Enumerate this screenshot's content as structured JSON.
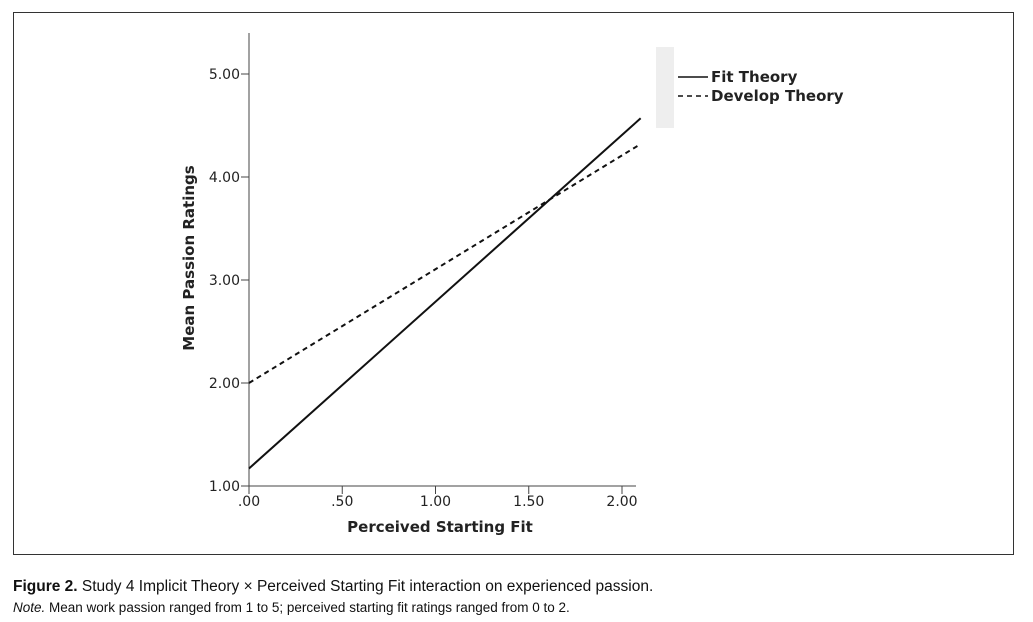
{
  "chart_data": {
    "type": "line",
    "xlabel": "Perceived Starting Fit",
    "ylabel": "Mean Passion Ratings",
    "xlim": [
      0,
      2.1
    ],
    "ylim": [
      1,
      5.35
    ],
    "x_ticks": [
      0,
      0.5,
      1.0,
      1.5,
      2.0
    ],
    "x_tick_labels": [
      ".00",
      ".50",
      "1.00",
      "1.50",
      "2.00"
    ],
    "y_ticks": [
      1,
      2,
      3,
      4,
      5
    ],
    "y_tick_labels": [
      "1.00",
      "2.00",
      "3.00",
      "4.00",
      "5.00"
    ],
    "legend_position": "top-right",
    "series": [
      {
        "name": "Fit Theory",
        "style": "solid",
        "x": [
          0,
          2.1
        ],
        "y": [
          1.17,
          4.57
        ]
      },
      {
        "name": "Develop Theory",
        "style": "dashed",
        "x": [
          0,
          2.1
        ],
        "y": [
          2.0,
          4.32
        ]
      }
    ]
  },
  "caption": {
    "label": "Figure 2.",
    "text": " Study 4 Implicit Theory × Perceived Starting Fit interaction on experienced passion."
  },
  "note": {
    "label": "Note.",
    "text": " Mean work passion ranged from 1 to 5; perceived starting fit ratings ranged from 0 to 2."
  }
}
